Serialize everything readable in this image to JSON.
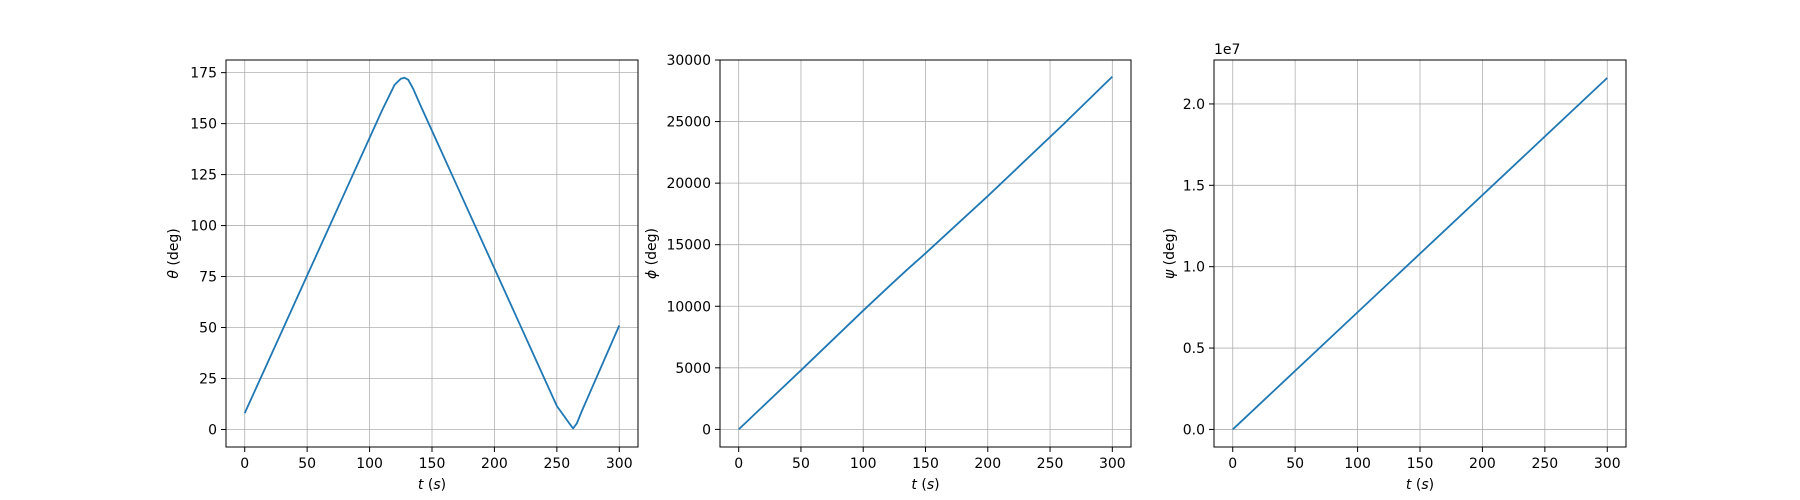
{
  "chart_data": [
    {
      "type": "line",
      "xlabel": "t (s)",
      "ylabel": "θ (deg)",
      "xlim": [
        -15,
        315
      ],
      "ylim": [
        -8.6,
        181.2
      ],
      "xticks": [
        0,
        50,
        100,
        150,
        200,
        250,
        300
      ],
      "yticks": [
        0,
        25,
        50,
        75,
        100,
        125,
        150,
        175
      ],
      "ytick_labels": [
        "0",
        "25",
        "50",
        "75",
        "100",
        "125",
        "150",
        "175"
      ],
      "sci_label": "",
      "grid": true,
      "line_color": "#1f77b4",
      "x": [
        0,
        10,
        20,
        30,
        40,
        50,
        60,
        70,
        80,
        90,
        100,
        110,
        120,
        125,
        128,
        131,
        135,
        140,
        150,
        160,
        170,
        180,
        190,
        200,
        210,
        220,
        230,
        240,
        250,
        260,
        263,
        266,
        270,
        280,
        290,
        300
      ],
      "y": [
        8,
        21.5,
        35,
        48.5,
        62,
        75.5,
        89,
        102.5,
        116,
        129.5,
        143,
        156.5,
        169,
        172,
        172.5,
        171.5,
        167,
        160,
        146.5,
        133,
        119.5,
        106,
        92.5,
        79,
        65.5,
        52,
        38.5,
        25,
        11.5,
        3,
        0.5,
        3,
        9,
        23,
        37,
        51
      ]
    },
    {
      "type": "line",
      "xlabel": "t (s)",
      "ylabel": "ϕ (deg)",
      "xlim": [
        -15,
        315
      ],
      "ylim": [
        -1430,
        30000
      ],
      "xticks": [
        0,
        50,
        100,
        150,
        200,
        250,
        300
      ],
      "yticks": [
        0,
        5000,
        10000,
        15000,
        20000,
        25000,
        30000
      ],
      "ytick_labels": [
        "0",
        "5000",
        "10000",
        "15000",
        "20000",
        "25000",
        "30000"
      ],
      "sci_label": "",
      "grid": true,
      "line_color": "#1f77b4",
      "x": [
        0,
        50,
        100,
        120,
        135,
        150,
        200,
        262,
        266,
        300
      ],
      "y": [
        0,
        4800,
        9650,
        11550,
        12950,
        14300,
        18950,
        24900,
        25300,
        28650
      ]
    },
    {
      "type": "line",
      "xlabel": "t (s)",
      "ylabel": "ψ (deg)",
      "xlim": [
        -15,
        315
      ],
      "ylim": [
        -1080000,
        22700000
      ],
      "xticks": [
        0,
        50,
        100,
        150,
        200,
        250,
        300
      ],
      "yticks": [
        0,
        5000000,
        10000000,
        15000000,
        20000000
      ],
      "ytick_labels": [
        "0.0",
        "0.5",
        "1.0",
        "1.5",
        "2.0"
      ],
      "sci_label": "1e7",
      "grid": true,
      "line_color": "#1f77b4",
      "x": [
        0,
        300
      ],
      "y": [
        0,
        21600000
      ]
    }
  ]
}
